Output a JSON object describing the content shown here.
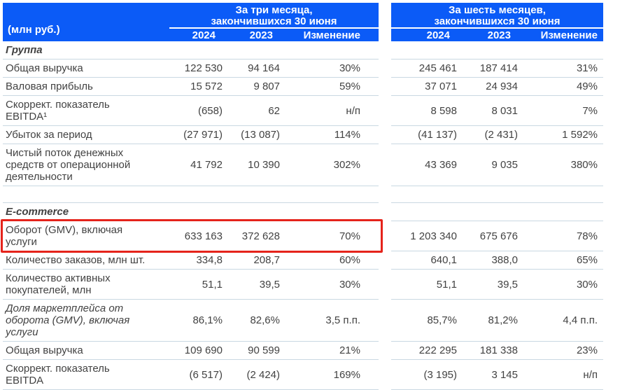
{
  "header": {
    "unit_label": "(млн руб.)",
    "groups": [
      {
        "title_line1": "За три месяца,",
        "title_line2": "закончившихся 30 июня",
        "columns": [
          "2024",
          "2023",
          "Изменение"
        ]
      },
      {
        "title_line1": "За шесть месяцев,",
        "title_line2": "закончившихся 30 июня",
        "columns": [
          "2024",
          "2023",
          "Изменение"
        ]
      }
    ]
  },
  "colors": {
    "header_bg": "#0b5bf7",
    "header_text": "#ffffff",
    "row_line": "#c9d8e2",
    "body_text": "#424242",
    "highlight_border": "#e5231b"
  },
  "sections": [
    {
      "name": "Группа",
      "rows": [
        {
          "label": "Общая выручка",
          "three_months": [
            "122 530",
            "94 164",
            "30%"
          ],
          "six_months": [
            "245 461",
            "187 414",
            "31%"
          ]
        },
        {
          "label": "Валовая прибыль",
          "three_months": [
            "15 572",
            "9 807",
            "59%"
          ],
          "six_months": [
            "37 071",
            "24 934",
            "49%"
          ]
        },
        {
          "label": "Скоррект. показатель\nEBITDA¹",
          "three_months": [
            "(658)",
            "62",
            "н/п"
          ],
          "six_months": [
            "8 598",
            "8 031",
            "7%"
          ]
        },
        {
          "label": "Убыток за период",
          "three_months": [
            "(27 971)",
            "(13 087)",
            "114%"
          ],
          "six_months": [
            "(41 137)",
            "(2 431)",
            "1 592%"
          ]
        },
        {
          "label": "Чистый поток денежных\nсредств от операционной\nдеятельности",
          "three_months": [
            "41 792",
            "10 390",
            "302%"
          ],
          "six_months": [
            "43 369",
            "9 035",
            "380%"
          ]
        }
      ]
    },
    {
      "name": "E-commerce",
      "rows": [
        {
          "label": "Оборот (GMV), включая\nуслуги",
          "highlighted": true,
          "three_months": [
            "633 163",
            "372 628",
            "70%"
          ],
          "six_months": [
            "1 203 340",
            "675 676",
            "78%"
          ]
        },
        {
          "label": "Количество заказов, млн шт.",
          "three_months": [
            "334,8",
            "208,7",
            "60%"
          ],
          "six_months": [
            "640,1",
            "388,0",
            "65%"
          ]
        },
        {
          "label": "Количество активных\nпокупателей, млн",
          "three_months": [
            "51,1",
            "39,5",
            "30%"
          ],
          "six_months": [
            "51,1",
            "39,5",
            "30%"
          ]
        },
        {
          "label": "Доля маркетплейса от\nоборота (GMV), включая\nуслуги",
          "italic": true,
          "three_months": [
            "86,1%",
            "82,6%",
            "3,5 п.п."
          ],
          "six_months": [
            "85,7%",
            "81,2%",
            "4,4 п.п."
          ]
        },
        {
          "label": "Общая выручка",
          "three_months": [
            "109 690",
            "90 599",
            "21%"
          ],
          "six_months": [
            "222 295",
            "181 338",
            "23%"
          ]
        },
        {
          "label": "Скоррект. показатель\nEBITDA",
          "three_months": [
            "(6 517)",
            "(2 424)",
            "169%"
          ],
          "six_months": [
            "(3 195)",
            "3 145",
            "н/п"
          ]
        }
      ]
    }
  ]
}
